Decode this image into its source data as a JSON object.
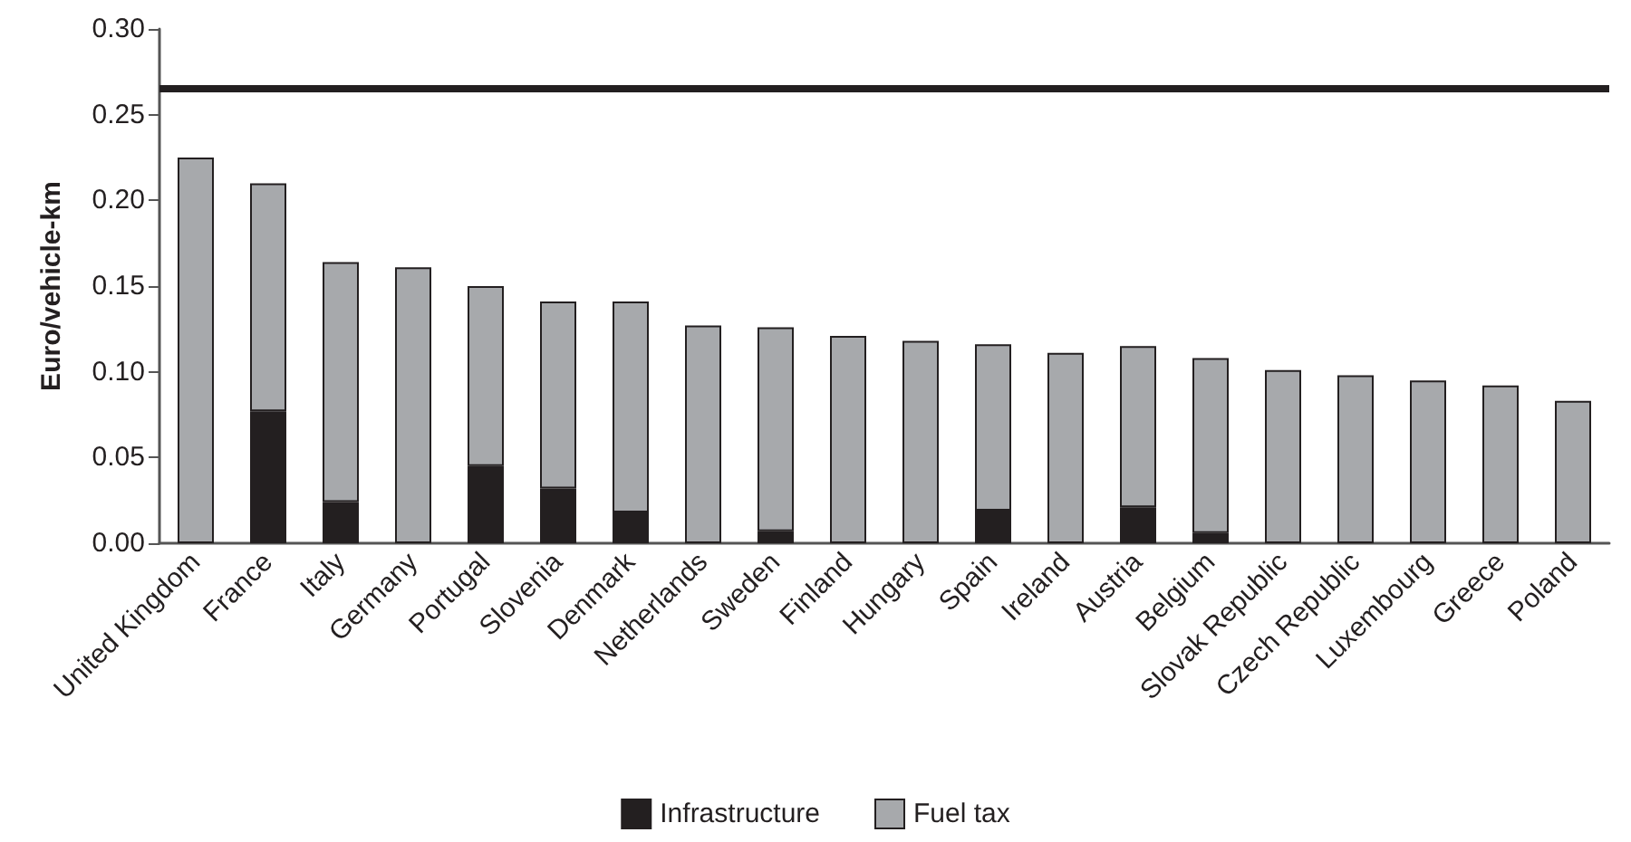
{
  "chart_data": {
    "type": "bar",
    "stacked": true,
    "ylabel": "Euro/vehicle-km",
    "categories": [
      "United Kingdom",
      "France",
      "Italy",
      "Germany",
      "Portugal",
      "Slovenia",
      "Denmark",
      "Netherlands",
      "Sweden",
      "Finland",
      "Hungary",
      "Spain",
      "Ireland",
      "Austria",
      "Belgium",
      "Slovak Republic",
      "Czech Republic",
      "Luxembourg",
      "Greece",
      "Poland"
    ],
    "series": [
      {
        "name": "Infrastructure",
        "color": "#231f20",
        "values": [
          0,
          0.077,
          0.024,
          0,
          0.045,
          0.032,
          0.018,
          0,
          0.007,
          0,
          0,
          0.019,
          0,
          0.021,
          0.006,
          0,
          0,
          0,
          0,
          0
        ]
      },
      {
        "name": "Fuel tax",
        "color": "#a7a9ac",
        "values": [
          0.225,
          0.133,
          0.14,
          0.161,
          0.105,
          0.109,
          0.123,
          0.127,
          0.119,
          0.121,
          0.118,
          0.097,
          0.111,
          0.094,
          0.102,
          0.101,
          0.098,
          0.095,
          0.092,
          0.083
        ]
      }
    ],
    "ylim": [
      0,
      0.3
    ],
    "yticks": [
      {
        "value": 0,
        "label": "0.00"
      },
      {
        "value": 0.05,
        "label": "0.05"
      },
      {
        "value": 0.1,
        "label": "0.10"
      },
      {
        "value": 0.15,
        "label": "0.15"
      },
      {
        "value": 0.2,
        "label": "0.20"
      },
      {
        "value": 0.25,
        "label": "0.25"
      },
      {
        "value": 0.3,
        "label": "0.30"
      }
    ],
    "ref_lines": [
      {
        "axis": "y",
        "value": 0.265,
        "color": "#231f20",
        "line_style": "solid"
      }
    ],
    "grid": false,
    "legend": "bottom"
  }
}
